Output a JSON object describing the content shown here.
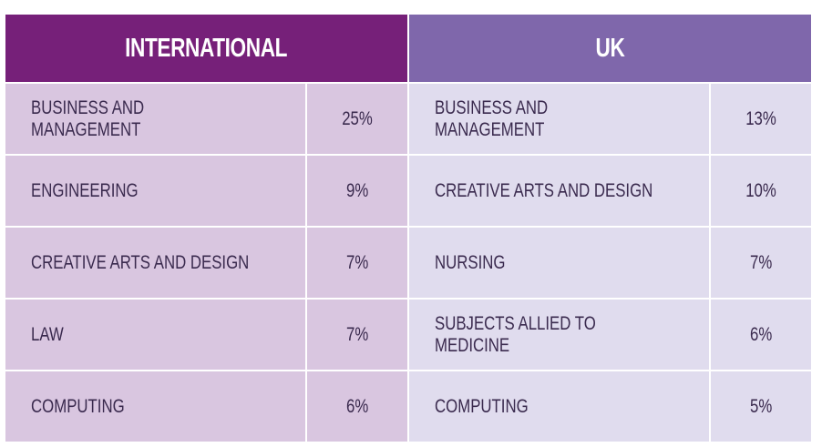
{
  "chart_data": {
    "type": "table",
    "tables": [
      {
        "title": "INTERNATIONAL",
        "header_color": "#762079",
        "row_color": "#d9c6e0",
        "rows": [
          {
            "subject": "BUSINESS AND MANAGEMENT",
            "value": "25%"
          },
          {
            "subject": "ENGINEERING",
            "value": "9%"
          },
          {
            "subject": "CREATIVE ARTS AND DESIGN",
            "value": "7%"
          },
          {
            "subject": "LAW",
            "value": "7%"
          },
          {
            "subject": "COMPUTING",
            "value": "6%"
          }
        ]
      },
      {
        "title": "UK",
        "header_color": "#7f67ab",
        "row_color": "#e0dcee",
        "rows": [
          {
            "subject": "BUSINESS AND MANAGEMENT",
            "value": "13%"
          },
          {
            "subject": "CREATIVE ARTS AND DESIGN",
            "value": "10%"
          },
          {
            "subject": "NURSING",
            "value": "7%"
          },
          {
            "subject": "SUBJECTS ALLIED TO MEDICINE",
            "value": "6%"
          },
          {
            "subject": "COMPUTING",
            "value": "5%"
          }
        ]
      }
    ]
  }
}
